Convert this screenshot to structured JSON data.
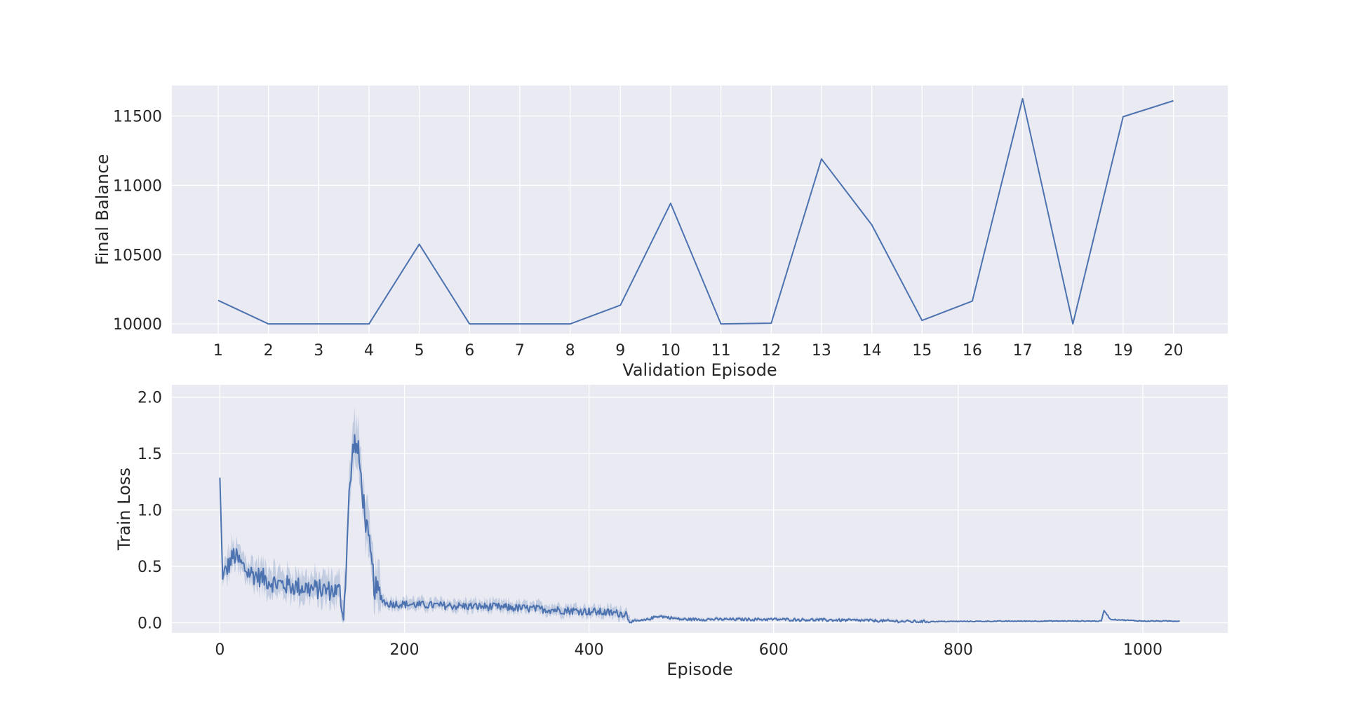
{
  "colors": {
    "axes_background": "#eaeaf2",
    "grid": "#ffffff",
    "line": "#4c72b0",
    "band": "#4c72b0",
    "text": "#262626"
  },
  "chart_data": [
    {
      "type": "line",
      "xlabel": "Validation Episode",
      "ylabel": "Final Balance",
      "grid": true,
      "x": [
        1,
        2,
        3,
        4,
        5,
        6,
        7,
        8,
        9,
        10,
        11,
        12,
        13,
        14,
        15,
        16,
        17,
        18,
        19,
        20
      ],
      "y": [
        10170,
        10000,
        10000,
        10000,
        10575,
        10000,
        10000,
        10000,
        10135,
        10870,
        10000,
        10005,
        11190,
        10715,
        10025,
        10165,
        11625,
        10000,
        11495,
        11610
      ],
      "xlim": [
        0.08,
        21.08
      ],
      "ylim": [
        9930,
        11720
      ],
      "xticks": [
        "1",
        "2",
        "3",
        "4",
        "5",
        "6",
        "7",
        "8",
        "9",
        "10",
        "11",
        "12",
        "13",
        "14",
        "15",
        "16",
        "17",
        "18",
        "19",
        "20"
      ],
      "yticks": [
        "10000",
        "10500",
        "11000",
        "11500"
      ]
    },
    {
      "type": "line",
      "xlabel": "Episode",
      "ylabel": "Train Loss",
      "grid": true,
      "confidence_band": true,
      "x_range": [
        0,
        1040
      ],
      "xlim": [
        -52,
        1092
      ],
      "ylim": [
        -0.09,
        2.11
      ],
      "xticks": [
        "0",
        "200",
        "400",
        "600",
        "800",
        "1000"
      ],
      "yticks": [
        "0.0",
        "0.5",
        "1.0",
        "1.5",
        "2.0"
      ],
      "key_points": [
        {
          "x": 0,
          "y": 1.28
        },
        {
          "x": 3,
          "y": 0.4
        },
        {
          "x": 15,
          "y": 0.6
        },
        {
          "x": 30,
          "y": 0.45
        },
        {
          "x": 60,
          "y": 0.35
        },
        {
          "x": 100,
          "y": 0.3
        },
        {
          "x": 130,
          "y": 0.28
        },
        {
          "x": 134,
          "y": 0.02
        },
        {
          "x": 140,
          "y": 1.1
        },
        {
          "x": 145,
          "y": 1.62
        },
        {
          "x": 150,
          "y": 1.5
        },
        {
          "x": 158,
          "y": 0.9
        },
        {
          "x": 168,
          "y": 0.3
        },
        {
          "x": 180,
          "y": 0.17
        },
        {
          "x": 250,
          "y": 0.15
        },
        {
          "x": 300,
          "y": 0.14
        },
        {
          "x": 350,
          "y": 0.12
        },
        {
          "x": 400,
          "y": 0.1
        },
        {
          "x": 440,
          "y": 0.08
        },
        {
          "x": 445,
          "y": 0.01
        },
        {
          "x": 460,
          "y": 0.02
        },
        {
          "x": 475,
          "y": 0.06
        },
        {
          "x": 500,
          "y": 0.03
        },
        {
          "x": 600,
          "y": 0.03
        },
        {
          "x": 700,
          "y": 0.02
        },
        {
          "x": 750,
          "y": 0.01
        },
        {
          "x": 900,
          "y": 0.015
        },
        {
          "x": 955,
          "y": 0.015
        },
        {
          "x": 958,
          "y": 0.11
        },
        {
          "x": 965,
          "y": 0.03
        },
        {
          "x": 1000,
          "y": 0.015
        },
        {
          "x": 1040,
          "y": 0.015
        }
      ]
    }
  ]
}
